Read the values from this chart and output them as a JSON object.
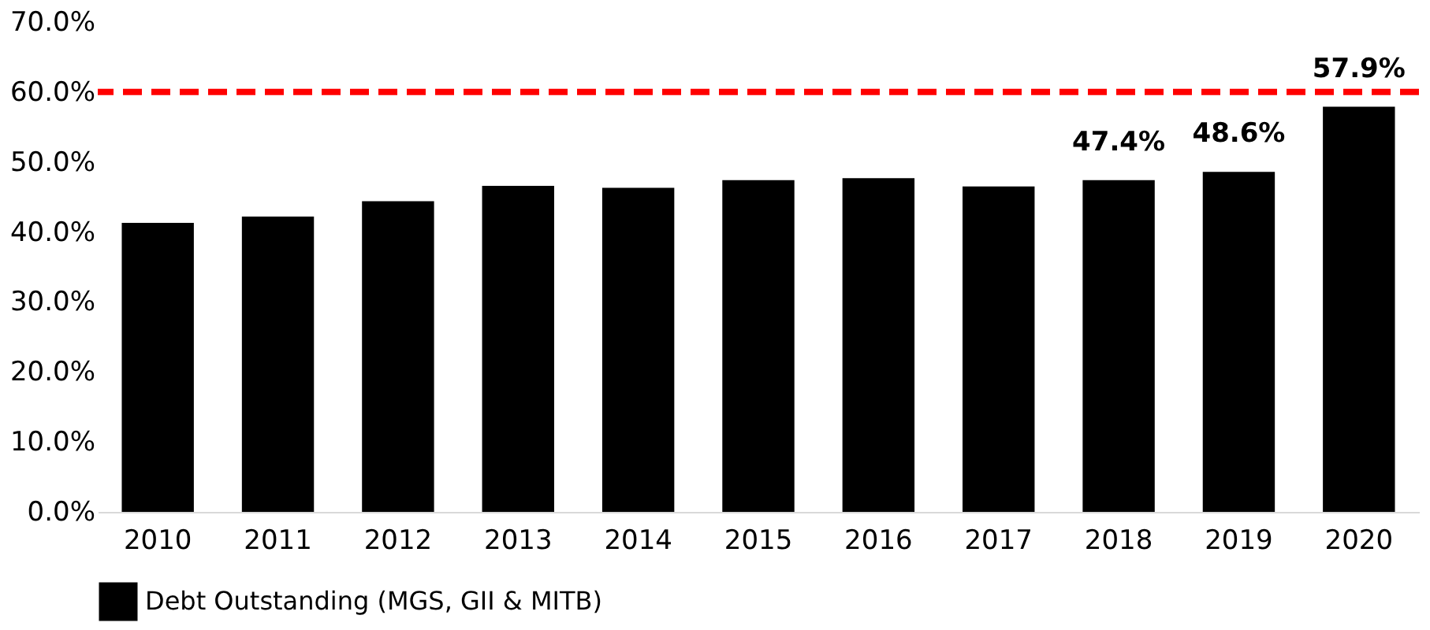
{
  "chart_data": {
    "type": "bar",
    "categories": [
      "2010",
      "2011",
      "2012",
      "2013",
      "2014",
      "2015",
      "2016",
      "2017",
      "2018",
      "2019",
      "2020"
    ],
    "series": [
      {
        "name": "Debt Outstanding (MGS, GII & MITB)",
        "color": "#000000",
        "values": [
          41.3,
          42.2,
          44.4,
          46.6,
          46.3,
          47.4,
          47.7,
          46.5,
          47.4,
          48.6,
          57.9
        ],
        "value_labels": [
          null,
          null,
          null,
          null,
          null,
          null,
          null,
          null,
          "47.4%",
          "48.6%",
          "57.9%"
        ]
      }
    ],
    "ylim": [
      0,
      70
    ],
    "yticks": [
      {
        "value": 0,
        "label": "0.0%"
      },
      {
        "value": 10,
        "label": "10.0%"
      },
      {
        "value": 20,
        "label": "20.0%"
      },
      {
        "value": 30,
        "label": "30.0%"
      },
      {
        "value": 40,
        "label": "40.0%"
      },
      {
        "value": 50,
        "label": "50.0%"
      },
      {
        "value": 60,
        "label": "60.0%"
      },
      {
        "value": 70,
        "label": "70.0%"
      }
    ],
    "ref_lines": [
      {
        "axis": "y",
        "value": 60,
        "color": "#ff0000",
        "line_style": "dashed"
      }
    ],
    "grid": false,
    "legend": "bottom"
  }
}
